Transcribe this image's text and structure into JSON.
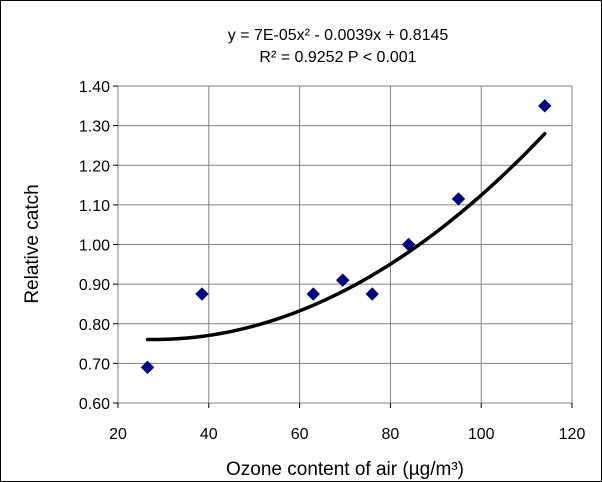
{
  "chart_data": {
    "type": "scatter",
    "title": "",
    "xlabel": "Ozone content of air (µg/m³)",
    "ylabel": "Relative catch",
    "xlim": [
      20,
      120
    ],
    "ylim": [
      0.6,
      1.4
    ],
    "x_ticks": [
      "20",
      "40",
      "60",
      "80",
      "100",
      "120"
    ],
    "y_ticks": [
      "0.60",
      "0.70",
      "0.80",
      "0.90",
      "1.00",
      "1.10",
      "1.20",
      "1.30",
      "1.40"
    ],
    "grid": true,
    "points": [
      {
        "x": 26.5,
        "y": 0.69
      },
      {
        "x": 38.5,
        "y": 0.875
      },
      {
        "x": 63.0,
        "y": 0.875
      },
      {
        "x": 69.5,
        "y": 0.91
      },
      {
        "x": 76.0,
        "y": 0.875
      },
      {
        "x": 84.0,
        "y": 1.0
      },
      {
        "x": 95.0,
        "y": 1.115
      },
      {
        "x": 114.0,
        "y": 1.35
      }
    ],
    "trendline": {
      "type": "polynomial",
      "coefficients": [
        7e-05,
        -0.0039,
        0.8145
      ],
      "x_range": [
        26.5,
        114.0
      ],
      "equation_label": "y = 7E-05x² - 0.0039x + 0.8145",
      "r2_label": "R² = 0.9252  P < 0.001"
    },
    "marker_color": "#000080",
    "line_color": "#000000"
  }
}
